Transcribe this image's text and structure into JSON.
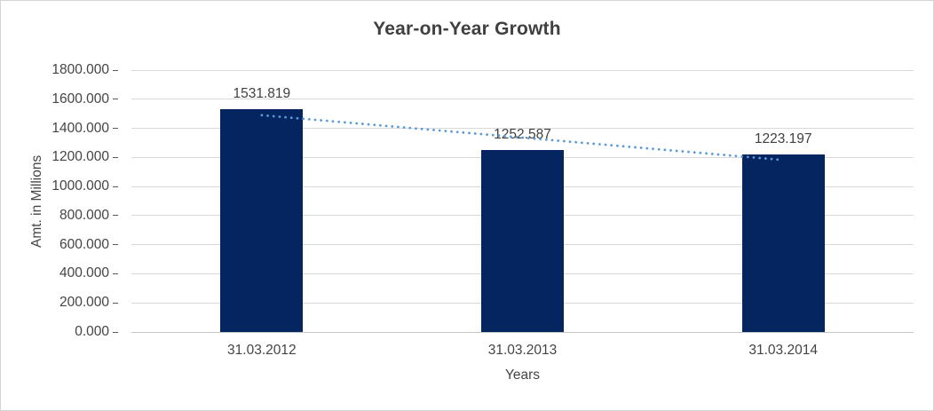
{
  "chart_data": {
    "type": "bar",
    "title": "Year-on-Year Growth",
    "xlabel": "Years",
    "ylabel": "Amt. in Millions",
    "categories": [
      "31.03.2012",
      "31.03.2013",
      "31.03.2014"
    ],
    "values": [
      1531.819,
      1252.587,
      1223.197
    ],
    "value_labels": [
      "1531.819",
      "1252.587",
      "1223.197"
    ],
    "ylim": [
      0,
      1800
    ],
    "ytick_step": 200,
    "ytick_labels": [
      "0.000",
      "200.000",
      "400.000",
      "600.000",
      "800.000",
      "1000.000",
      "1200.000",
      "1400.000",
      "1600.000",
      "1800.000"
    ],
    "grid": true,
    "legend": "none",
    "colors": {
      "bar_fill": "#042560",
      "trendline": "#5b9bd5",
      "gridline": "#d9d9d9",
      "title_text": "#404040",
      "axis_text": "#444444",
      "frame_border": "#d4d4d4"
    },
    "trendline": {
      "type": "linear",
      "style": "dotted",
      "values": [
        1490,
        1336,
        1182
      ]
    }
  }
}
